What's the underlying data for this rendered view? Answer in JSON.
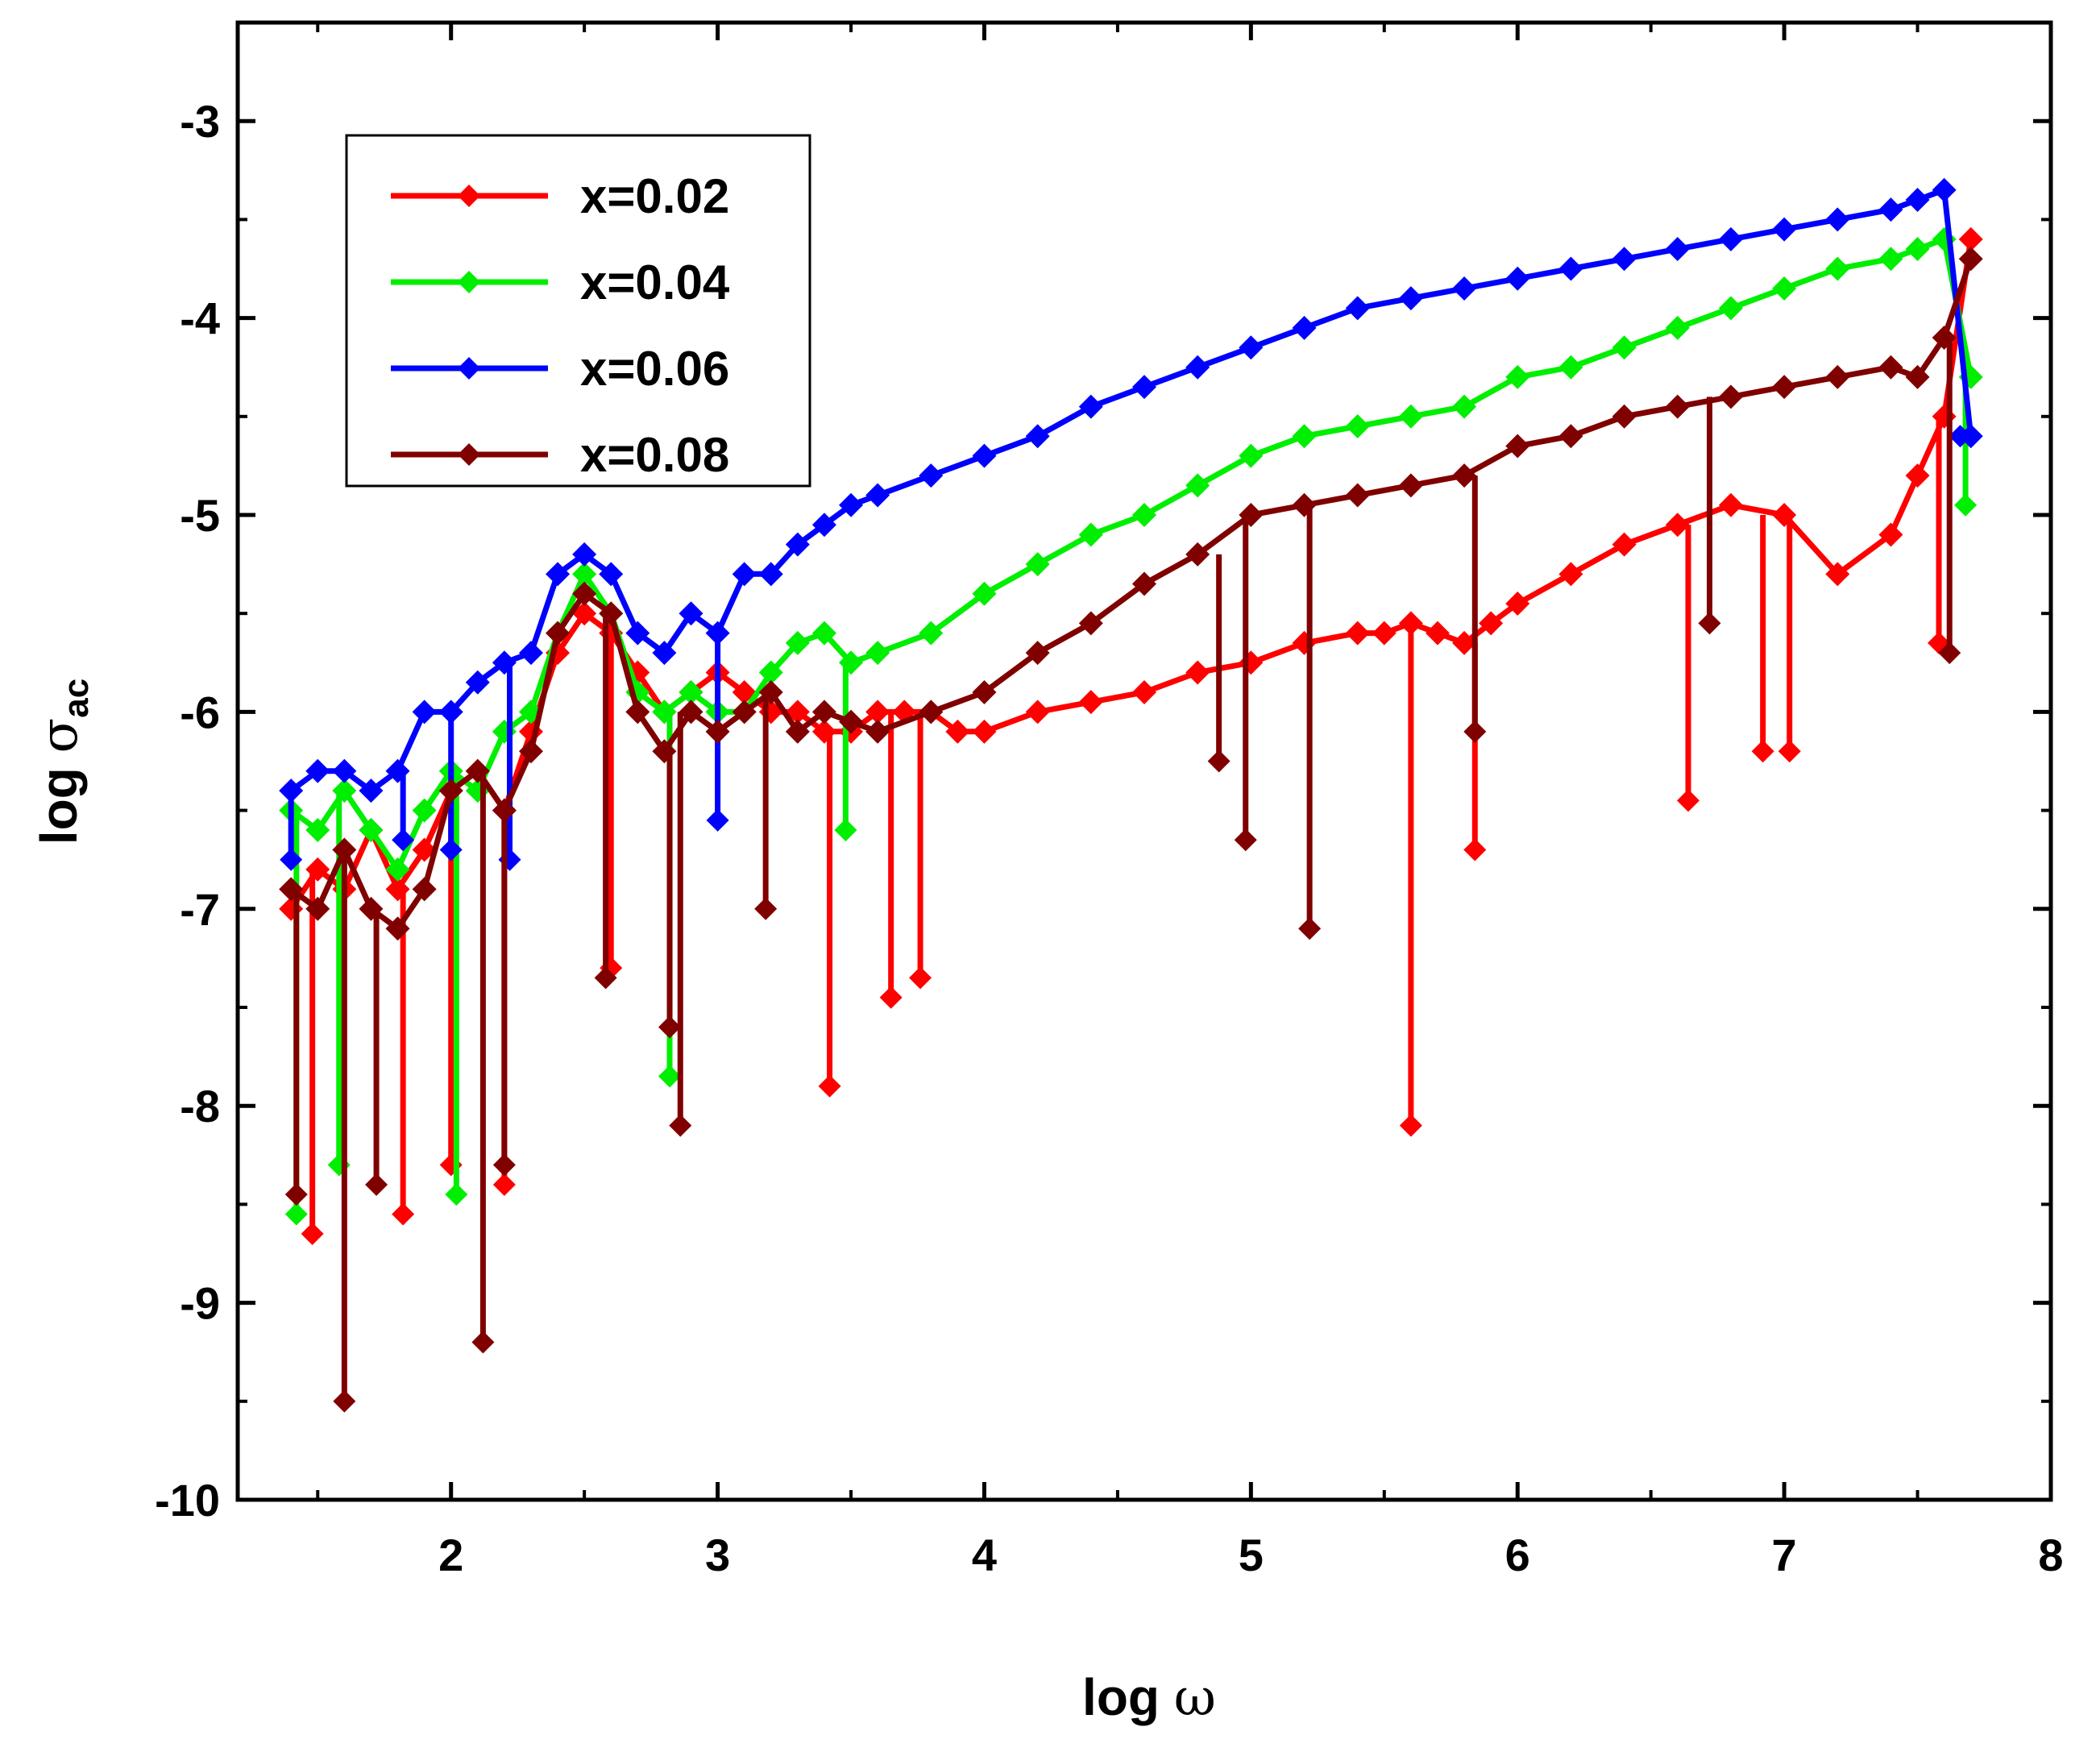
{
  "chart_data": {
    "type": "line",
    "title": "",
    "xlabel_prefix": "log ",
    "xlabel_symbol": "ω",
    "ylabel_prefix": "log ",
    "ylabel_symbol": "σ",
    "ylabel_subscript": "ac",
    "xlim": [
      1.2,
      8
    ],
    "ylim": [
      -10,
      -2.5
    ],
    "xticks": [
      2,
      3,
      4,
      5,
      6,
      7,
      8
    ],
    "yticks": [
      -10,
      -9,
      -8,
      -7,
      -6,
      -5,
      -4,
      -3
    ],
    "xtick_labels": [
      "2",
      "3",
      "4",
      "5",
      "6",
      "7",
      "8"
    ],
    "ytick_labels": [
      "-10",
      "-9",
      "-8",
      "-7",
      "-6",
      "-5",
      "-4",
      "-3"
    ],
    "grid": false,
    "legend_position": "top-left",
    "series": [
      {
        "name": "x=0.02",
        "color": "#ff0000",
        "x": [
          1.4,
          1.5,
          1.6,
          1.7,
          1.8,
          1.9,
          2.0,
          2.1,
          2.2,
          2.3,
          2.4,
          2.5,
          2.6,
          2.7,
          2.8,
          2.9,
          3.0,
          3.1,
          3.2,
          3.3,
          3.4,
          3.5,
          3.6,
          3.7,
          3.8,
          3.9,
          4.0,
          4.2,
          4.4,
          4.6,
          4.8,
          5.0,
          5.2,
          5.4,
          5.5,
          5.6,
          5.7,
          5.8,
          5.9,
          6.0,
          6.2,
          6.4,
          6.6,
          6.8,
          7.0,
          7.2,
          7.4,
          7.5,
          7.6,
          7.7
        ],
        "y": [
          -7.0,
          -6.8,
          -6.9,
          -6.6,
          -6.9,
          -6.7,
          -6.4,
          -6.3,
          -6.5,
          -6.1,
          -5.7,
          -5.5,
          -5.6,
          -5.8,
          -6.0,
          -5.9,
          -5.8,
          -5.9,
          -6.0,
          -6.0,
          -6.1,
          -6.1,
          -6.0,
          -6.0,
          -6.0,
          -6.1,
          -6.1,
          -6.0,
          -5.95,
          -5.9,
          -5.8,
          -5.75,
          -5.65,
          -5.6,
          -5.6,
          -5.55,
          -5.6,
          -5.65,
          -5.55,
          -5.45,
          -5.3,
          -5.15,
          -5.05,
          -4.95,
          -5.0,
          -5.3,
          -5.1,
          -4.8,
          -4.5,
          -3.6
        ],
        "dip_x": [
          1.48,
          1.82,
          2.0,
          2.2,
          2.6,
          3.42,
          3.65,
          3.76,
          5.6,
          5.84,
          6.64,
          6.92,
          7.02,
          7.58
        ],
        "dip_y": [
          -8.65,
          -8.55,
          -8.3,
          -8.4,
          -7.3,
          -7.9,
          -7.45,
          -7.35,
          -8.1,
          -6.7,
          -6.45,
          -6.2,
          -6.2,
          -5.65
        ]
      },
      {
        "name": "x=0.04",
        "color": "#00ee00",
        "x": [
          1.4,
          1.5,
          1.6,
          1.7,
          1.8,
          1.9,
          2.0,
          2.1,
          2.2,
          2.3,
          2.4,
          2.5,
          2.6,
          2.7,
          2.8,
          2.9,
          3.0,
          3.1,
          3.2,
          3.3,
          3.4,
          3.5,
          3.6,
          3.8,
          4.0,
          4.2,
          4.4,
          4.6,
          4.8,
          5.0,
          5.2,
          5.4,
          5.6,
          5.8,
          6.0,
          6.2,
          6.4,
          6.6,
          6.8,
          7.0,
          7.2,
          7.4,
          7.5,
          7.6,
          7.7
        ],
        "y": [
          -6.5,
          -6.6,
          -6.4,
          -6.6,
          -6.8,
          -6.5,
          -6.3,
          -6.4,
          -6.1,
          -6.0,
          -5.6,
          -5.3,
          -5.5,
          -5.9,
          -6.0,
          -5.9,
          -6.0,
          -6.0,
          -5.8,
          -5.65,
          -5.6,
          -5.75,
          -5.7,
          -5.6,
          -5.4,
          -5.25,
          -5.1,
          -5.0,
          -4.85,
          -4.7,
          -4.6,
          -4.55,
          -4.5,
          -4.45,
          -4.3,
          -4.25,
          -4.15,
          -4.05,
          -3.95,
          -3.85,
          -3.75,
          -3.7,
          -3.65,
          -3.6,
          -4.3
        ],
        "dip_x": [
          1.42,
          1.58,
          2.02,
          2.82,
          3.48,
          7.68
        ],
        "dip_y": [
          -8.55,
          -8.3,
          -8.45,
          -7.85,
          -6.6,
          -4.95
        ]
      },
      {
        "name": "x=0.06",
        "color": "#0000ff",
        "x": [
          1.4,
          1.5,
          1.6,
          1.7,
          1.8,
          1.9,
          2.0,
          2.1,
          2.2,
          2.3,
          2.4,
          2.5,
          2.6,
          2.7,
          2.8,
          2.9,
          3.0,
          3.1,
          3.2,
          3.3,
          3.4,
          3.5,
          3.6,
          3.8,
          4.0,
          4.2,
          4.4,
          4.6,
          4.8,
          5.0,
          5.2,
          5.4,
          5.6,
          5.8,
          6.0,
          6.2,
          6.4,
          6.6,
          6.8,
          7.0,
          7.2,
          7.4,
          7.5,
          7.6,
          7.7
        ],
        "y": [
          -6.4,
          -6.3,
          -6.3,
          -6.4,
          -6.3,
          -6.0,
          -6.0,
          -5.85,
          -5.75,
          -5.7,
          -5.3,
          -5.2,
          -5.3,
          -5.6,
          -5.7,
          -5.5,
          -5.6,
          -5.3,
          -5.3,
          -5.15,
          -5.05,
          -4.95,
          -4.9,
          -4.8,
          -4.7,
          -4.6,
          -4.45,
          -4.35,
          -4.25,
          -4.15,
          -4.05,
          -3.95,
          -3.9,
          -3.85,
          -3.8,
          -3.75,
          -3.7,
          -3.65,
          -3.6,
          -3.55,
          -3.5,
          -3.45,
          -3.4,
          -3.35,
          -4.6
        ],
        "dip_x": [
          1.4,
          1.82,
          2.0,
          2.22,
          3.0,
          7.66
        ],
        "dip_y": [
          -6.75,
          -6.65,
          -6.7,
          -6.75,
          -6.55,
          -4.6
        ]
      },
      {
        "name": "x=0.08",
        "color": "#800000",
        "x": [
          1.4,
          1.5,
          1.6,
          1.7,
          1.8,
          1.9,
          2.0,
          2.1,
          2.2,
          2.3,
          2.4,
          2.5,
          2.6,
          2.7,
          2.8,
          2.9,
          3.0,
          3.1,
          3.2,
          3.3,
          3.4,
          3.5,
          3.6,
          3.8,
          4.0,
          4.2,
          4.4,
          4.6,
          4.8,
          5.0,
          5.2,
          5.4,
          5.6,
          5.8,
          6.0,
          6.2,
          6.4,
          6.6,
          6.8,
          7.0,
          7.2,
          7.4,
          7.5,
          7.6,
          7.7
        ],
        "y": [
          -6.9,
          -7.0,
          -6.7,
          -7.0,
          -7.1,
          -6.9,
          -6.4,
          -6.3,
          -6.5,
          -6.2,
          -5.6,
          -5.4,
          -5.5,
          -6.0,
          -6.2,
          -6.0,
          -6.1,
          -6.0,
          -5.9,
          -6.1,
          -6.0,
          -6.05,
          -6.1,
          -6.0,
          -5.9,
          -5.7,
          -5.55,
          -5.35,
          -5.2,
          -5.0,
          -4.95,
          -4.9,
          -4.85,
          -4.8,
          -4.65,
          -4.6,
          -4.5,
          -4.45,
          -4.4,
          -4.35,
          -4.3,
          -4.25,
          -4.3,
          -4.1,
          -3.7
        ],
        "dip_x": [
          1.42,
          1.6,
          1.72,
          2.12,
          2.2,
          2.58,
          2.82,
          2.86,
          3.18,
          4.88,
          4.98,
          5.22,
          5.84,
          6.72,
          7.62
        ],
        "dip_y": [
          -8.45,
          -9.5,
          -8.4,
          -9.2,
          -8.3,
          -7.35,
          -7.6,
          -8.1,
          -7.0,
          -6.25,
          -6.65,
          -7.1,
          -6.1,
          -5.55,
          -5.7
        ]
      }
    ]
  }
}
